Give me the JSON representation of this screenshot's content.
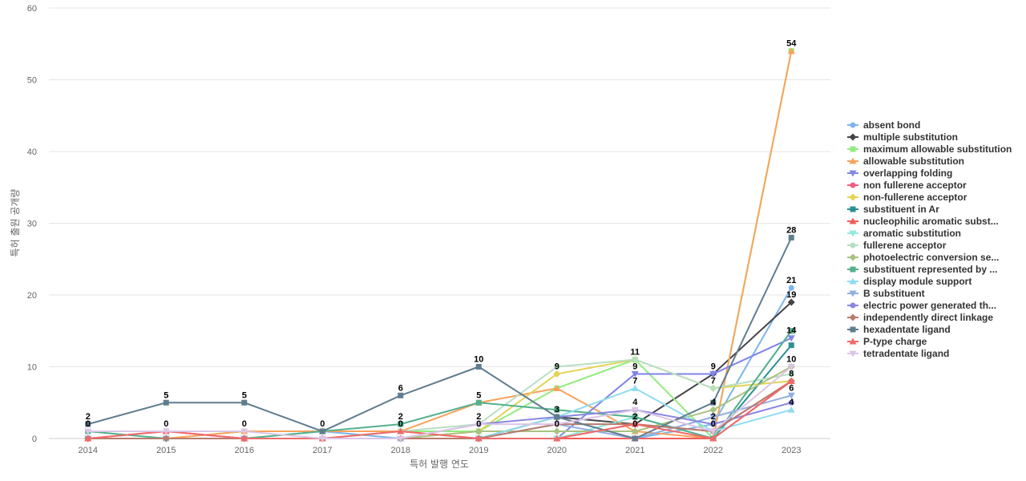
{
  "chart_data": {
    "type": "line",
    "title": "",
    "xlabel": "특허 발행 연도",
    "ylabel": "특허 출원 공개량",
    "x": [
      "2014",
      "2015",
      "2016",
      "2017",
      "2018",
      "2019",
      "2020",
      "2021",
      "2022",
      "2023"
    ],
    "ylim": [
      0,
      60
    ],
    "yticks": [
      0,
      10,
      20,
      30,
      40,
      50,
      60
    ],
    "grid": true,
    "legend_position": "right",
    "series": [
      {
        "name": "absent bond",
        "color": "#7cb5ec",
        "marker": "circle",
        "values": [
          0,
          0,
          0,
          1,
          0,
          0,
          0,
          0,
          2,
          21
        ]
      },
      {
        "name": "multiple substitution",
        "color": "#434348",
        "marker": "diamond",
        "values": [
          0,
          0,
          0,
          0,
          0,
          0,
          3,
          2,
          9,
          19
        ]
      },
      {
        "name": "maximum allowable substitution",
        "color": "#90ed7d",
        "marker": "square",
        "values": [
          0,
          0,
          1,
          1,
          1,
          1,
          7,
          11,
          0,
          54
        ]
      },
      {
        "name": "allowable substitution",
        "color": "#f7a35c",
        "marker": "triangle",
        "values": [
          0,
          0,
          1,
          1,
          1,
          5,
          7,
          1,
          0,
          54
        ]
      },
      {
        "name": "overlapping folding",
        "color": "#8085e9",
        "marker": "triangle-down",
        "values": [
          0,
          0,
          0,
          0,
          0,
          0,
          0,
          9,
          9,
          14
        ]
      },
      {
        "name": "non fullerene acceptor",
        "color": "#f15c80",
        "marker": "circle",
        "values": [
          0,
          1,
          0,
          0,
          1,
          0,
          0,
          2,
          1,
          8
        ]
      },
      {
        "name": "non-fullerene acceptor",
        "color": "#e4d354",
        "marker": "diamond",
        "values": [
          0,
          0,
          0,
          0,
          0,
          1,
          9,
          11,
          7,
          8
        ]
      },
      {
        "name": "substituent in Ar",
        "color": "#2b908f",
        "marker": "square",
        "values": [
          0,
          0,
          0,
          0,
          0,
          0,
          0,
          0,
          0,
          13
        ]
      },
      {
        "name": "nucleophilic aromatic subst...",
        "color": "#f45b5b",
        "marker": "triangle",
        "values": [
          0,
          0,
          0,
          0,
          0,
          0,
          0,
          0,
          0,
          8
        ]
      },
      {
        "name": "aromatic substitution",
        "color": "#91e8e1",
        "marker": "triangle-down",
        "values": [
          0,
          0,
          0,
          0,
          0,
          0,
          0,
          3,
          0,
          15
        ]
      },
      {
        "name": "fullerene acceptor",
        "color": "#b7dfc2",
        "marker": "circle",
        "values": [
          0,
          0,
          0,
          0,
          1,
          2,
          10,
          11,
          7,
          9
        ]
      },
      {
        "name": "photoelectric conversion se...",
        "color": "#a9c27f",
        "marker": "diamond",
        "values": [
          0,
          0,
          0,
          0,
          0,
          1,
          1,
          1,
          4,
          10
        ]
      },
      {
        "name": "substituent represented by ...",
        "color": "#54b08d",
        "marker": "square",
        "values": [
          1,
          0,
          0,
          1,
          2,
          5,
          4,
          3,
          0,
          15
        ]
      },
      {
        "name": "display module support",
        "color": "#8fdcf0",
        "marker": "triangle",
        "values": [
          0,
          0,
          0,
          0,
          0,
          0,
          3,
          7,
          1,
          4
        ]
      },
      {
        "name": "B substituent",
        "color": "#92aee0",
        "marker": "triangle-down",
        "values": [
          0,
          0,
          0,
          0,
          0,
          0,
          2,
          0,
          3,
          6
        ]
      },
      {
        "name": "electric power generated th...",
        "color": "#8a86e0",
        "marker": "circle",
        "values": [
          0,
          0,
          0,
          0,
          0,
          2,
          3,
          4,
          2,
          5
        ]
      },
      {
        "name": "independently direct linkage",
        "color": "#b97b6c",
        "marker": "diamond",
        "values": [
          0,
          0,
          0,
          0,
          0,
          0,
          2,
          2,
          1,
          8
        ]
      },
      {
        "name": "hexadentate ligand",
        "color": "#607d8f",
        "marker": "square",
        "values": [
          2,
          5,
          5,
          1,
          6,
          10,
          3,
          0,
          5,
          28
        ]
      },
      {
        "name": "P-type charge",
        "color": "#f06a6a",
        "marker": "triangle",
        "values": [
          0,
          1,
          0,
          0,
          1,
          0,
          0,
          2,
          0,
          8
        ]
      },
      {
        "name": "tetradentate ligand",
        "color": "#dcc5e6",
        "marker": "triangle-down",
        "values": [
          1,
          1,
          1,
          0,
          0,
          2,
          2,
          4,
          1,
          10
        ]
      }
    ],
    "data_labels": [
      {
        "x": "2014",
        "y": 2,
        "text": "2"
      },
      {
        "x": "2014",
        "y": 1,
        "text": "0"
      },
      {
        "x": "2015",
        "y": 5,
        "text": "5"
      },
      {
        "x": "2015",
        "y": 1,
        "text": "0"
      },
      {
        "x": "2016",
        "y": 5,
        "text": "5"
      },
      {
        "x": "2016",
        "y": 1,
        "text": "0"
      },
      {
        "x": "2017",
        "y": 1,
        "text": "0"
      },
      {
        "x": "2018",
        "y": 6,
        "text": "6"
      },
      {
        "x": "2018",
        "y": 2,
        "text": "2"
      },
      {
        "x": "2018",
        "y": 1,
        "text": "0"
      },
      {
        "x": "2019",
        "y": 10,
        "text": "10"
      },
      {
        "x": "2019",
        "y": 5,
        "text": "5"
      },
      {
        "x": "2019",
        "y": 2,
        "text": "2"
      },
      {
        "x": "2019",
        "y": 1,
        "text": "0"
      },
      {
        "x": "2020",
        "y": 9,
        "text": "9"
      },
      {
        "x": "2020",
        "y": 3,
        "text": "3"
      },
      {
        "x": "2020",
        "y": 1,
        "text": "0"
      },
      {
        "x": "2021",
        "y": 11,
        "text": "11"
      },
      {
        "x": "2021",
        "y": 9,
        "text": "9"
      },
      {
        "x": "2021",
        "y": 7,
        "text": "7"
      },
      {
        "x": "2021",
        "y": 4,
        "text": "4"
      },
      {
        "x": "2021",
        "y": 2,
        "text": "2"
      },
      {
        "x": "2021",
        "y": 1,
        "text": "0"
      },
      {
        "x": "2022",
        "y": 9,
        "text": "9"
      },
      {
        "x": "2022",
        "y": 7,
        "text": "7"
      },
      {
        "x": "2022",
        "y": 4,
        "text": "4"
      },
      {
        "x": "2022",
        "y": 2,
        "text": "2"
      },
      {
        "x": "2022",
        "y": 1,
        "text": "0"
      },
      {
        "x": "2023",
        "y": 54,
        "text": "54"
      },
      {
        "x": "2023",
        "y": 28,
        "text": "28"
      },
      {
        "x": "2023",
        "y": 21,
        "text": "21"
      },
      {
        "x": "2023",
        "y": 19,
        "text": "19"
      },
      {
        "x": "2023",
        "y": 14,
        "text": "14"
      },
      {
        "x": "2023",
        "y": 10,
        "text": "10"
      },
      {
        "x": "2023",
        "y": 8,
        "text": "8"
      },
      {
        "x": "2023",
        "y": 6,
        "text": "6"
      },
      {
        "x": "2023",
        "y": 4,
        "text": "4"
      }
    ]
  }
}
